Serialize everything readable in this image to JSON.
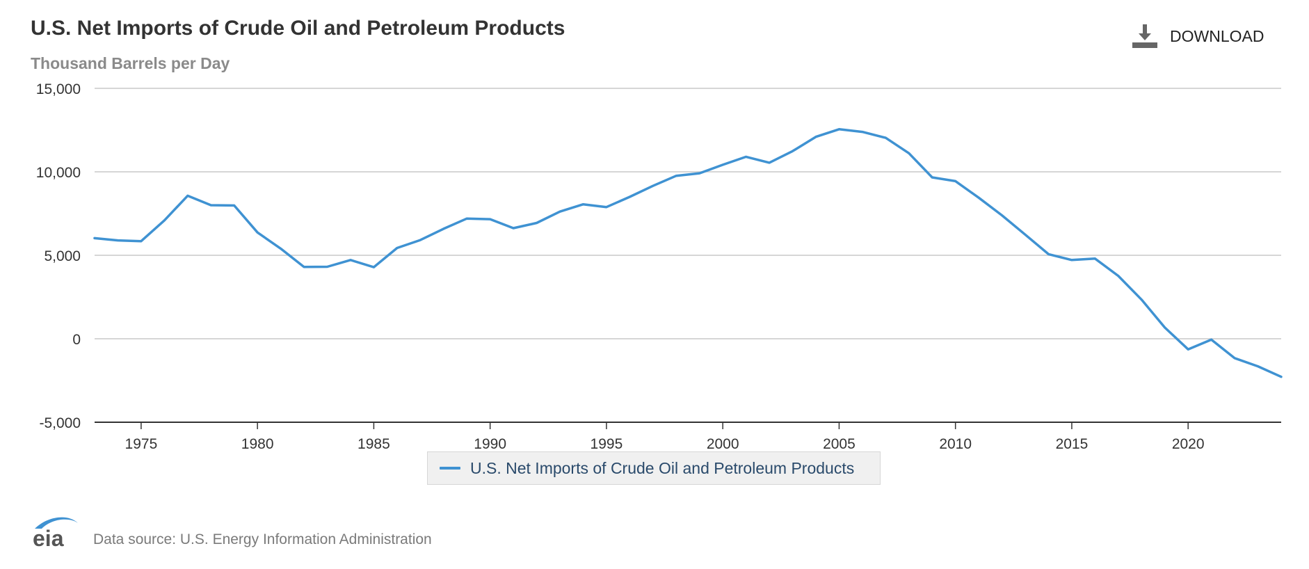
{
  "header": {
    "title": "U.S. Net Imports of Crude Oil and Petroleum Products",
    "subtitle": "Thousand Barrels per Day"
  },
  "toolbar": {
    "download_label": "DOWNLOAD",
    "download_icon": "download-icon"
  },
  "footer": {
    "logo_text": "eia",
    "source_text": "Data source: U.S. Energy Information Administration"
  },
  "colors": {
    "series": "#3f92d2",
    "grid": "#c8c8c8",
    "axis": "#333333",
    "logo": "#3f92d2"
  },
  "chart_data": {
    "type": "line",
    "title": "U.S. Net Imports of Crude Oil and Petroleum Products",
    "subtitle": "Thousand Barrels per Day",
    "xlabel": "",
    "ylabel": "",
    "xlim": [
      1973,
      2024
    ],
    "ylim": [
      -5000,
      15000
    ],
    "x_ticks": [
      1975,
      1980,
      1985,
      1990,
      1995,
      2000,
      2005,
      2010,
      2015,
      2020
    ],
    "x_tick_labels": [
      "1975",
      "1980",
      "1985",
      "1990",
      "1995",
      "2000",
      "2005",
      "2010",
      "2015",
      "2020"
    ],
    "y_ticks": [
      -5000,
      0,
      5000,
      10000,
      15000
    ],
    "y_tick_labels": [
      "-5,000",
      "0",
      "5,000",
      "10,000",
      "15,000"
    ],
    "grid": true,
    "legend_position": "bottom-center",
    "x": [
      1973,
      1974,
      1975,
      1976,
      1977,
      1978,
      1979,
      1980,
      1981,
      1982,
      1983,
      1984,
      1985,
      1986,
      1987,
      1988,
      1989,
      1990,
      1991,
      1992,
      1993,
      1994,
      1995,
      1996,
      1997,
      1998,
      1999,
      2000,
      2001,
      2002,
      2003,
      2004,
      2005,
      2006,
      2007,
      2008,
      2009,
      2010,
      2011,
      2012,
      2013,
      2014,
      2015,
      2016,
      2017,
      2018,
      2019,
      2020,
      2021,
      2022,
      2023,
      2024
    ],
    "series": [
      {
        "name": "U.S. Net Imports of Crude Oil and Petroleum Products",
        "color": "#3f92d2",
        "values": [
          6025,
          5892,
          5846,
          7090,
          8565,
          8002,
          7985,
          6365,
          5401,
          4298,
          4312,
          4715,
          4286,
          5439,
          5914,
          6587,
          7202,
          7161,
          6626,
          6938,
          7618,
          8054,
          7886,
          8498,
          9158,
          9764,
          9912,
          10419,
          10900,
          10546,
          11238,
          12097,
          12549,
          12390,
          12036,
          11114,
          9667,
          9441,
          8450,
          7393,
          6237,
          5065,
          4715,
          4802,
          3768,
          2341,
          670,
          -635,
          -51,
          -1164,
          -1650,
          -2280
        ]
      }
    ]
  }
}
